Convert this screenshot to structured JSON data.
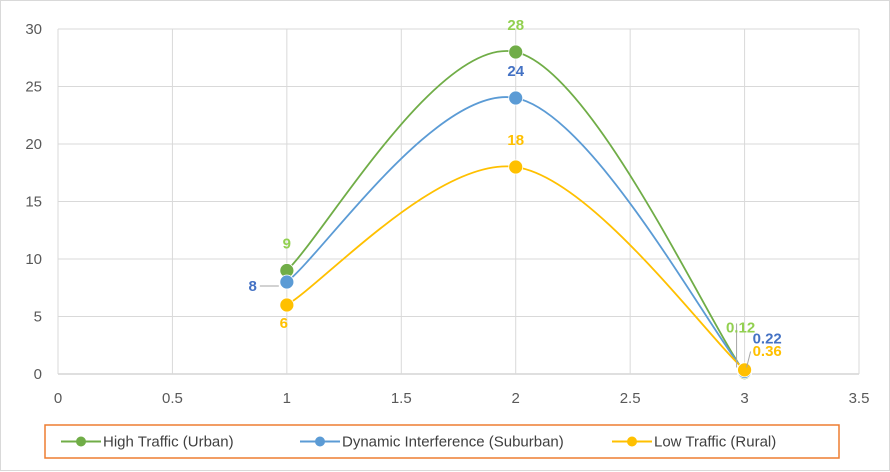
{
  "chart_data": {
    "type": "line",
    "smooth": true,
    "title": "",
    "xlabel": "",
    "ylabel": "",
    "xlim": [
      0,
      3.5
    ],
    "ylim": [
      0,
      30
    ],
    "x_ticks": [
      "0",
      "0.5",
      "1",
      "1.5",
      "2",
      "2.5",
      "3",
      "3.5"
    ],
    "y_ticks": [
      "0",
      "5",
      "10",
      "15",
      "20",
      "25",
      "30"
    ],
    "grid": true,
    "legend_position": "bottom",
    "legend_border_color": "#ed7d31",
    "series": [
      {
        "name": "High Traffic (Urban)",
        "color": "#70ad47",
        "label_color": "#92d050",
        "x": [
          1,
          2,
          3
        ],
        "values": [
          9,
          28,
          0.12
        ],
        "labels": [
          "9",
          "28",
          "0.12"
        ]
      },
      {
        "name": "Dynamic Interference (Suburban)",
        "color": "#5b9bd5",
        "label_color": "#4472c4",
        "x": [
          1,
          2,
          3
        ],
        "values": [
          8,
          24,
          0.22
        ],
        "labels": [
          "8",
          "24",
          "0.22"
        ]
      },
      {
        "name": "Low Traffic (Rural)",
        "color": "#ffc000",
        "label_color": "#ffc000",
        "x": [
          1,
          2,
          3
        ],
        "values": [
          6,
          18,
          0.36
        ],
        "labels": [
          "6",
          "18",
          "0.36"
        ]
      }
    ]
  }
}
